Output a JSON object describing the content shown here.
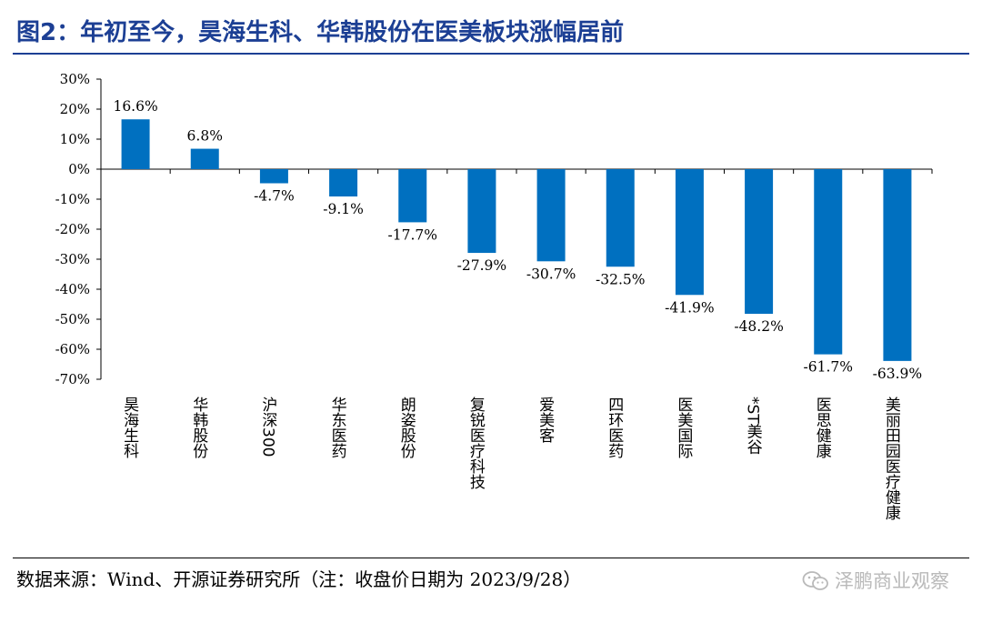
{
  "header": {
    "title": "图2：年初至今，昊海生科、华韩股份在医美板块涨幅居前"
  },
  "chart_data": {
    "type": "bar",
    "title": "图2：年初至今，昊海生科、华韩股份在医美板块涨幅居前",
    "xlabel": "",
    "ylabel": "",
    "ylim": [
      -70,
      30
    ],
    "yticks": [
      30,
      20,
      10,
      0,
      -10,
      -20,
      -30,
      -40,
      -50,
      -60,
      -70
    ],
    "ytick_labels": [
      "30%",
      "20%",
      "10%",
      "0%",
      "-10%",
      "-20%",
      "-30%",
      "-40%",
      "-50%",
      "-60%",
      "-70%"
    ],
    "categories": [
      "昊海生科",
      "华韩股份",
      "沪深300",
      "华东医药",
      "朗姿股份",
      "复锐医疗科技",
      "爱美客",
      "四环医药",
      "医美国际",
      "*ST美谷",
      "医思健康",
      "美丽田园医疗健康"
    ],
    "values": [
      16.6,
      6.8,
      -4.7,
      -9.1,
      -17.7,
      -27.9,
      -30.7,
      -32.5,
      -41.9,
      -48.2,
      -61.7,
      -63.9
    ],
    "data_labels": [
      "16.6%",
      "6.8%",
      "-4.7%",
      "-9.1%",
      "-17.7%",
      "-27.9%",
      "-30.7%",
      "-32.5%",
      "-41.9%",
      "-48.2%",
      "-61.7%",
      "-63.9%"
    ],
    "bar_color": "#0070c0",
    "grid": false,
    "legend": "none"
  },
  "footer": {
    "source": "数据来源：Wind、开源证券研究所（注：收盘价日期为 2023/9/28）",
    "watermark": "泽鹏商业观察"
  }
}
